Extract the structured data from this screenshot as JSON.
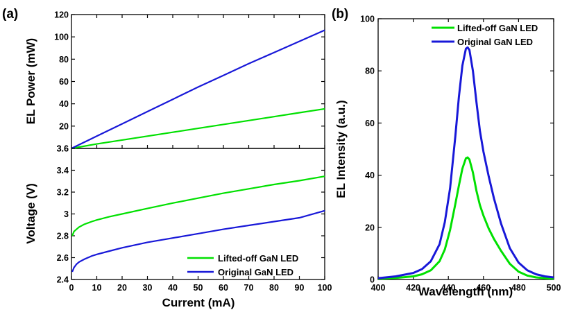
{
  "chart_data": [
    {
      "panel_label": "(a)",
      "type": "line",
      "subplots": [
        {
          "id": "power",
          "ylabel": "EL Power (mW)",
          "ylim": [
            0,
            120
          ],
          "yticks": [
            20,
            40,
            60,
            80,
            100,
            120
          ],
          "series": [
            {
              "name": "Lifted-off GaN LED",
              "color": "#00e000",
              "x": [
                0,
                10,
                20,
                30,
                40,
                50,
                60,
                70,
                80,
                90,
                100
              ],
              "y": [
                0,
                4.0,
                7.5,
                11.0,
                14.5,
                18.0,
                21.5,
                25.0,
                28.5,
                32.0,
                35.5
              ]
            },
            {
              "name": "Original GaN LED",
              "color": "#1818d8",
              "x": [
                0,
                10,
                20,
                30,
                40,
                50,
                60,
                70,
                80,
                90,
                100
              ],
              "y": [
                0,
                11.0,
                22.0,
                33.0,
                44.0,
                55.0,
                65.5,
                76.0,
                86.0,
                96.0,
                106.0
              ]
            }
          ]
        },
        {
          "id": "voltage",
          "ylabel": "Voltage (V)",
          "ylim": [
            2.4,
            3.6
          ],
          "yticks": [
            2.4,
            2.6,
            2.8,
            3,
            3.2,
            3.4,
            3.6
          ],
          "ytick_labels": [
            "2.4",
            "2.6",
            "2.8",
            "3",
            "3.2",
            "3.4",
            "3.6"
          ],
          "series": [
            {
              "name": "Lifted-off GaN LED",
              "color": "#00e000",
              "x": [
                0.3,
                1,
                2,
                3,
                5,
                8,
                10,
                15,
                20,
                30,
                40,
                50,
                60,
                70,
                80,
                90,
                100
              ],
              "y": [
                2.8,
                2.84,
                2.86,
                2.88,
                2.905,
                2.93,
                2.945,
                2.975,
                3.0,
                3.05,
                3.1,
                3.145,
                3.19,
                3.23,
                3.27,
                3.305,
                3.345
              ]
            },
            {
              "name": "Original GaN LED",
              "color": "#1818d8",
              "x": [
                0.3,
                1,
                2,
                3,
                5,
                8,
                10,
                15,
                20,
                30,
                40,
                50,
                60,
                70,
                80,
                90,
                100
              ],
              "y": [
                2.47,
                2.51,
                2.54,
                2.56,
                2.585,
                2.615,
                2.63,
                2.66,
                2.69,
                2.74,
                2.78,
                2.82,
                2.86,
                2.895,
                2.93,
                2.965,
                3.03
              ]
            }
          ]
        }
      ],
      "xlabel": "Current (mA)",
      "xlim": [
        0,
        100
      ],
      "xticks": [
        0,
        10,
        20,
        30,
        40,
        50,
        60,
        70,
        80,
        90,
        100
      ],
      "legend": {
        "placement": "bottom-right",
        "entries": [
          {
            "label": "Lifted-off GaN LED",
            "color": "#00e000"
          },
          {
            "label": "Original GaN LED",
            "color": "#1818d8"
          }
        ]
      }
    },
    {
      "panel_label": "(b)",
      "type": "line",
      "xlabel": "Wavelength (nm)",
      "ylabel": "EL Intensity (a.u.)",
      "xlim": [
        400,
        500
      ],
      "ylim": [
        0,
        100
      ],
      "xticks": [
        400,
        420,
        440,
        460,
        480,
        500
      ],
      "yticks": [
        0,
        20,
        40,
        60,
        80,
        100
      ],
      "series": [
        {
          "name": "Lifted-off GaN LED",
          "color": "#00e000",
          "x": [
            400,
            410,
            420,
            425,
            430,
            435,
            438,
            441,
            444,
            446,
            448,
            450,
            451,
            452,
            454,
            456,
            458,
            460,
            463,
            466,
            470,
            475,
            480,
            485,
            490,
            495,
            500
          ],
          "y": [
            0.3,
            0.6,
            1.2,
            2.0,
            3.5,
            7.0,
            11.5,
            19.0,
            29.0,
            36.0,
            42.5,
            46.5,
            46.8,
            46.0,
            41.0,
            34.0,
            28.5,
            24.5,
            19.5,
            15.5,
            11.0,
            6.0,
            3.0,
            1.5,
            0.8,
            0.5,
            0.3
          ]
        },
        {
          "name": "Original GaN LED",
          "color": "#1818d8",
          "x": [
            400,
            410,
            420,
            425,
            430,
            435,
            438,
            441,
            444,
            446,
            448,
            450,
            451,
            452,
            454,
            456,
            458,
            460,
            463,
            466,
            470,
            475,
            480,
            485,
            490,
            495,
            500
          ],
          "y": [
            0.5,
            1.2,
            2.5,
            4.0,
            7.0,
            13.5,
            22.0,
            35.0,
            55.0,
            70.0,
            82.0,
            88.5,
            89.0,
            88.0,
            80.0,
            68.0,
            57.0,
            49.0,
            39.5,
            31.0,
            21.5,
            12.0,
            6.5,
            3.5,
            2.0,
            1.2,
            0.8
          ]
        }
      ],
      "legend": {
        "placement": "top-right",
        "entries": [
          {
            "label": "Lifted-off GaN LED",
            "color": "#00e000"
          },
          {
            "label": "Original GaN LED",
            "color": "#1818d8"
          }
        ]
      }
    }
  ]
}
